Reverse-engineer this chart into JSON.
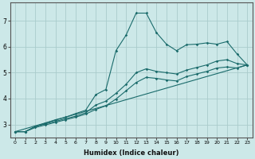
{
  "xlabel": "Humidex (Indice chaleur)",
  "bg_color": "#cce8e8",
  "grid_color": "#aacccc",
  "line_color": "#1a6b6b",
  "xlim": [
    -0.5,
    23.5
  ],
  "ylim": [
    2.5,
    7.7
  ],
  "xticks": [
    0,
    1,
    2,
    3,
    4,
    5,
    6,
    7,
    8,
    9,
    10,
    11,
    12,
    13,
    14,
    15,
    16,
    17,
    18,
    19,
    20,
    21,
    22,
    23
  ],
  "yticks": [
    3,
    4,
    5,
    6,
    7
  ],
  "line1_x": [
    0,
    1,
    2,
    3,
    4,
    5,
    6,
    7,
    8,
    9,
    10,
    11,
    12,
    13,
    14,
    15,
    16,
    17,
    18,
    19,
    20,
    21,
    22,
    23
  ],
  "line1_y": [
    2.72,
    2.72,
    2.92,
    3.05,
    3.18,
    3.28,
    3.42,
    3.55,
    4.15,
    4.35,
    5.85,
    6.45,
    7.3,
    7.3,
    6.55,
    6.1,
    5.85,
    6.08,
    6.1,
    6.15,
    6.1,
    6.2,
    5.72,
    5.3
  ],
  "line2_x": [
    0,
    1,
    2,
    3,
    4,
    5,
    6,
    7,
    8,
    9,
    10,
    11,
    12,
    13,
    14,
    15,
    16,
    17,
    18,
    19,
    20,
    21,
    22,
    23
  ],
  "line2_y": [
    2.72,
    2.72,
    2.92,
    3.02,
    3.12,
    3.22,
    3.32,
    3.45,
    3.75,
    3.9,
    4.2,
    4.55,
    5.0,
    5.15,
    5.05,
    5.0,
    4.95,
    5.1,
    5.2,
    5.3,
    5.45,
    5.5,
    5.35,
    5.3
  ],
  "line3_x": [
    0,
    1,
    2,
    3,
    4,
    5,
    6,
    7,
    8,
    9,
    10,
    11,
    12,
    13,
    14,
    15,
    16,
    17,
    18,
    19,
    20,
    21,
    22,
    23
  ],
  "line3_y": [
    2.72,
    2.72,
    2.88,
    2.98,
    3.08,
    3.18,
    3.28,
    3.4,
    3.58,
    3.72,
    3.98,
    4.3,
    4.62,
    4.82,
    4.78,
    4.72,
    4.68,
    4.85,
    4.95,
    5.05,
    5.18,
    5.22,
    5.18,
    5.3
  ],
  "line4_x": [
    0,
    23
  ],
  "line4_y": [
    2.72,
    5.3
  ]
}
